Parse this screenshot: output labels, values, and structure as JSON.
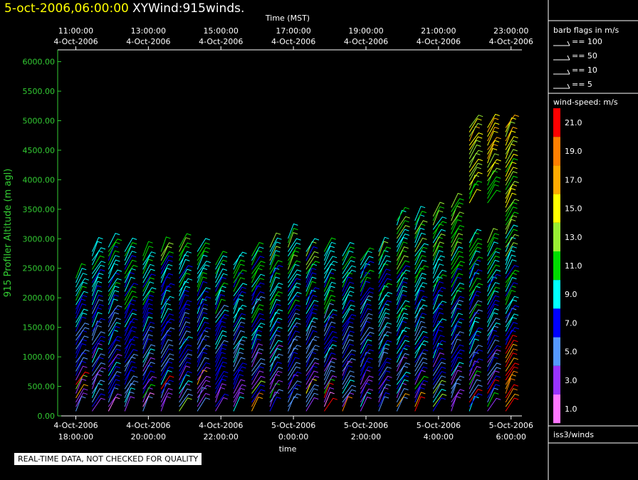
{
  "header": {
    "date": "5-oct-2006,06:00:00",
    "plot": "XYWind:915winds."
  },
  "footer": {
    "qc_note": "REAL-TIME DATA, NOT CHECKED FOR QUALITY"
  },
  "chart_data": {
    "type": "wind-barb-profile",
    "top_axis": {
      "label": "Time (MST)",
      "ticks": [
        {
          "time": "11:00:00",
          "date": "4-Oct-2006"
        },
        {
          "time": "13:00:00",
          "date": "4-Oct-2006"
        },
        {
          "time": "15:00:00",
          "date": "4-Oct-2006"
        },
        {
          "time": "17:00:00",
          "date": "4-Oct-2006"
        },
        {
          "time": "19:00:00",
          "date": "4-Oct-2006"
        },
        {
          "time": "21:00:00",
          "date": "4-Oct-2006"
        },
        {
          "time": "23:00:00",
          "date": "4-Oct-2006"
        }
      ]
    },
    "bottom_axis": {
      "label": "time",
      "ticks": [
        {
          "date": "4-Oct-2006",
          "time": "18:00:00"
        },
        {
          "date": "4-Oct-2006",
          "time": "20:00:00"
        },
        {
          "date": "4-Oct-2006",
          "time": "22:00:00"
        },
        {
          "date": "5-Oct-2006",
          "time": "0:00:00"
        },
        {
          "date": "5-Oct-2006",
          "time": "2:00:00"
        },
        {
          "date": "5-Oct-2006",
          "time": "4:00:00"
        },
        {
          "date": "5-Oct-2006",
          "time": "6:00:00"
        }
      ],
      "range_hours": [
        -0.5,
        12.3
      ]
    },
    "y_axis": {
      "label": "915 Profiler Altitude (m agl)",
      "ticks": [
        "0.00",
        "500.00",
        "1000.00",
        "1500.00",
        "2000.00",
        "2500.00",
        "3000.00",
        "3500.00",
        "4000.00",
        "4500.00",
        "5000.00",
        "5500.00",
        "6000.00"
      ],
      "range": [
        0,
        6200
      ],
      "color": "#33cc33"
    },
    "barb_legend": {
      "title": "barb flags in m/s",
      "items": [
        "== 100",
        "== 50",
        "== 10",
        "== 5"
      ]
    },
    "color_legend": {
      "title": "wind-speed: m/s",
      "bins": [
        {
          "label": "21.0",
          "color": "#ff0000"
        },
        {
          "label": "19.0",
          "color": "#ff7f00"
        },
        {
          "label": "17.0",
          "color": "#ffaa00"
        },
        {
          "label": "15.0",
          "color": "#ffff00"
        },
        {
          "label": "13.0",
          "color": "#99ee33"
        },
        {
          "label": "11.0",
          "color": "#00dd00"
        },
        {
          "label": "9.0",
          "color": "#00ffff"
        },
        {
          "label": "7.0",
          "color": "#0000ff"
        },
        {
          "label": "5.0",
          "color": "#5599ff"
        },
        {
          "label": "3.0",
          "color": "#9933ff"
        },
        {
          "label": "1.0",
          "color": "#ff77ff"
        }
      ]
    },
    "source": "iss3/winds",
    "profiles": [
      {
        "t": 0.0,
        "top": 2380
      },
      {
        "t": 0.45,
        "top": 2800
      },
      {
        "t": 0.9,
        "top": 2880
      },
      {
        "t": 1.35,
        "top": 2780
      },
      {
        "t": 1.85,
        "top": 2720
      },
      {
        "t": 2.35,
        "top": 2780
      },
      {
        "t": 2.85,
        "top": 2860
      },
      {
        "t": 3.35,
        "top": 2800
      },
      {
        "t": 3.85,
        "top": 2620
      },
      {
        "t": 4.35,
        "top": 2580
      },
      {
        "t": 4.85,
        "top": 2720
      },
      {
        "t": 5.35,
        "top": 2860
      },
      {
        "t": 5.85,
        "top": 3060
      },
      {
        "t": 6.35,
        "top": 2820
      },
      {
        "t": 6.85,
        "top": 2800
      },
      {
        "t": 7.35,
        "top": 2760
      },
      {
        "t": 7.85,
        "top": 2700
      },
      {
        "t": 8.35,
        "top": 2820
      },
      {
        "t": 8.85,
        "top": 3360
      },
      {
        "t": 9.35,
        "top": 3360
      },
      {
        "t": 9.85,
        "top": 3420
      },
      {
        "t": 10.35,
        "top": 3580
      },
      {
        "t": 10.85,
        "top": 4940
      },
      {
        "t": 11.35,
        "top": 4940
      },
      {
        "t": 11.85,
        "top": 4950
      }
    ]
  }
}
